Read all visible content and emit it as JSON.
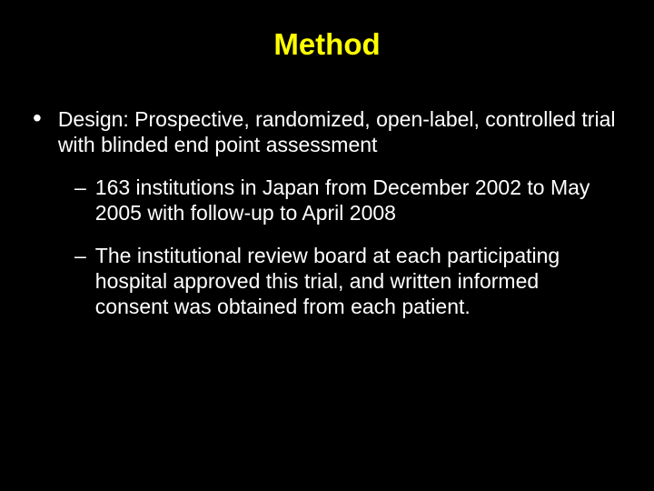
{
  "slide": {
    "title": "Method",
    "title_color": "#ffff00",
    "background_color": "#000000",
    "text_color": "#ffffff",
    "title_fontsize": 33,
    "body_fontsize": 23,
    "bullets": [
      {
        "level": 1,
        "marker": "•",
        "text": "Design: Prospective, randomized, open-label, controlled trial with blinded end point assessment"
      },
      {
        "level": 2,
        "marker": "–",
        "text": "163 institutions in Japan from December 2002 to May 2005 with follow-up to April 2008"
      },
      {
        "level": 2,
        "marker": "–",
        "text": "The institutional review board at each participating hospital approved this trial, and written informed consent was obtained from each patient."
      }
    ]
  }
}
